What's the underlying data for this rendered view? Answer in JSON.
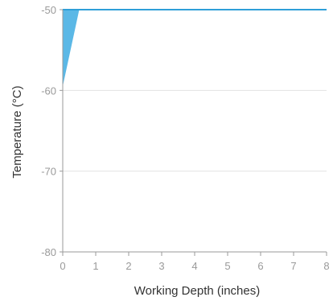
{
  "chart_data": {
    "type": "area",
    "xlabel": "Working Depth (inches)",
    "ylabel": "Temperature (°C)",
    "xlim": [
      0,
      8
    ],
    "ylim": [
      -80,
      -50
    ],
    "x_ticks": [
      "0",
      "1",
      "2",
      "3",
      "4",
      "5",
      "6",
      "7",
      "8"
    ],
    "y_ticks": [
      "-50",
      "-60",
      "-70",
      "-80"
    ],
    "grid": "horizontal",
    "series": [
      {
        "x": [
          0,
          0.5,
          8
        ],
        "y_upper": [
          -50,
          -50,
          -50
        ],
        "y_lower": [
          -59.5,
          -50,
          -50
        ],
        "color": "#5bb8e6"
      }
    ],
    "colors": {
      "area_fill": "#5bb8e6",
      "area_edge": "#2f9fd8",
      "grid": "#e2e2e2",
      "axis": "#9a9a9a",
      "tick_text": "#9a9a9a",
      "title_text": "#333333"
    }
  }
}
